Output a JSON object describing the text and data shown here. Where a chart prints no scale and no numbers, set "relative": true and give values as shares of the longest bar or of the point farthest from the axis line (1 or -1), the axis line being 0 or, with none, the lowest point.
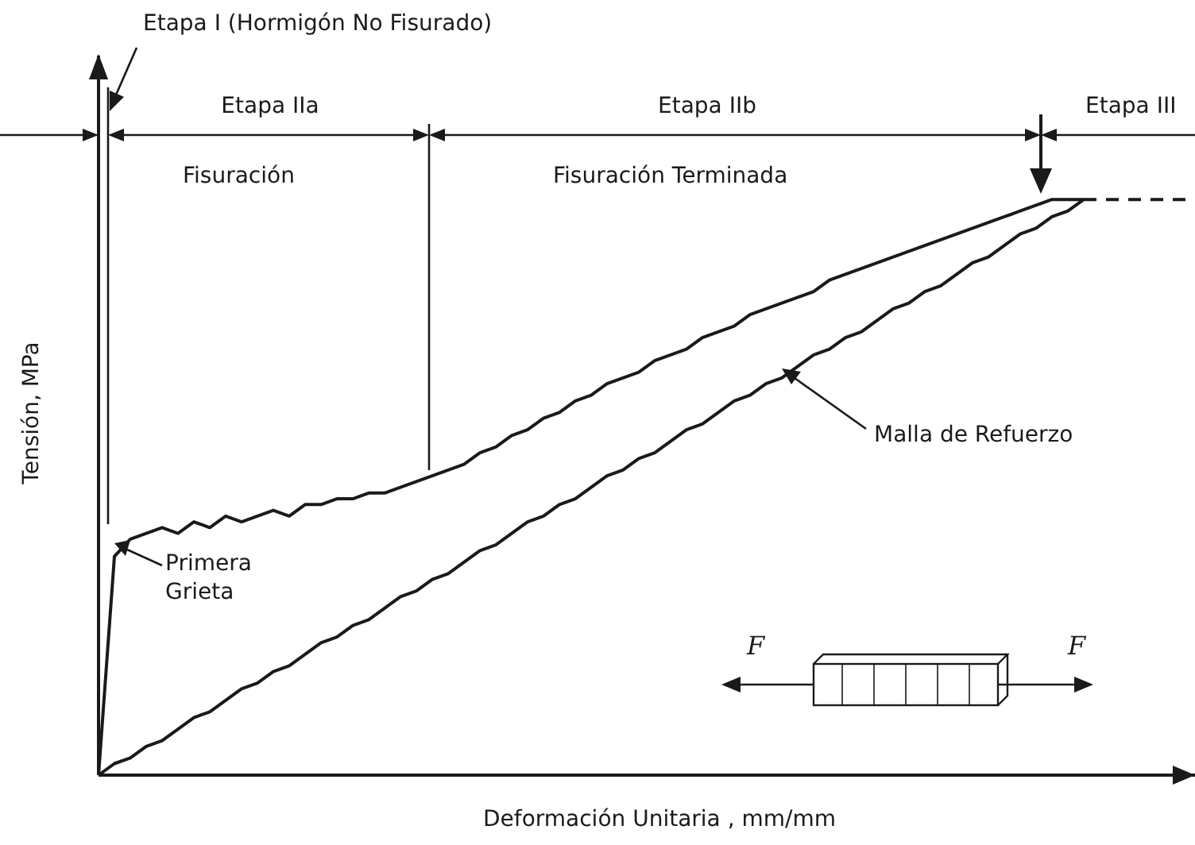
{
  "chart_data": {
    "type": "line",
    "relative": true,
    "xlabel": "Deformación Unitaria , mm/mm",
    "ylabel": "Tensión, MPa",
    "categories": [
      null,
      null,
      null,
      null,
      null,
      null,
      null,
      null,
      null,
      null,
      null,
      null,
      null,
      null,
      null,
      null,
      null,
      null,
      null,
      null,
      null,
      null,
      null,
      null,
      null,
      null,
      null,
      null,
      null,
      null,
      null,
      null,
      null,
      null,
      null,
      null,
      null,
      null,
      null,
      null,
      null,
      null,
      null,
      null,
      null,
      null,
      null,
      null,
      null,
      null,
      null,
      null,
      null,
      null,
      null,
      null,
      null,
      null,
      null,
      null,
      null,
      null,
      null,
      null,
      null,
      null,
      null,
      null,
      null,
      null
    ],
    "series": [
      {
        "color": "#1a1a1a",
        "line_style": "solid",
        "values": [
          0,
          0.38,
          0.41,
          0.42,
          0.43,
          0.42,
          0.44,
          0.43,
          0.45,
          0.44,
          0.45,
          0.46,
          0.45,
          0.47,
          0.47,
          0.48,
          0.48,
          0.49,
          0.49,
          0.5,
          0.51,
          0.52,
          0.53,
          0.54,
          0.56,
          0.57,
          0.59,
          0.6,
          0.62,
          0.63,
          0.65,
          0.66,
          0.68,
          0.69,
          0.7,
          0.72,
          0.73,
          0.74,
          0.76,
          0.77,
          0.78,
          0.8,
          0.81,
          0.82,
          0.83,
          0.84,
          0.86,
          0.87,
          0.88,
          0.89,
          0.9,
          0.91,
          0.92,
          0.93,
          0.94,
          0.95,
          0.96,
          0.97,
          0.98,
          0.99,
          1,
          1,
          1,
          null,
          null,
          null,
          null,
          null,
          null,
          null
        ]
      },
      {
        "name": "Malla de Refuerzo",
        "color": "#1a1a1a",
        "line_style": "solid",
        "values": [
          0,
          0.02,
          0.03,
          0.05,
          0.06,
          0.08,
          0.1,
          0.11,
          0.13,
          0.15,
          0.16,
          0.18,
          0.19,
          0.21,
          0.23,
          0.24,
          0.26,
          0.27,
          0.29,
          0.31,
          0.32,
          0.34,
          0.35,
          0.37,
          0.39,
          0.4,
          0.42,
          0.44,
          0.45,
          0.47,
          0.48,
          0.5,
          0.52,
          0.53,
          0.55,
          0.56,
          0.58,
          0.6,
          0.61,
          0.63,
          0.65,
          0.66,
          0.68,
          0.69,
          0.71,
          0.73,
          0.74,
          0.76,
          0.77,
          0.79,
          0.81,
          0.82,
          0.84,
          0.85,
          0.87,
          0.89,
          0.9,
          0.92,
          0.94,
          0.95,
          0.97,
          0.98,
          1,
          null,
          null,
          null,
          null,
          null,
          null,
          null
        ]
      },
      {
        "color": "#1a1a1a",
        "line_style": "dashed",
        "values": [
          null,
          null,
          null,
          null,
          null,
          null,
          null,
          null,
          null,
          null,
          null,
          null,
          null,
          null,
          null,
          null,
          null,
          null,
          null,
          null,
          null,
          null,
          null,
          null,
          null,
          null,
          null,
          null,
          null,
          null,
          null,
          null,
          null,
          null,
          null,
          null,
          null,
          null,
          null,
          null,
          null,
          null,
          null,
          null,
          null,
          null,
          null,
          null,
          null,
          null,
          null,
          null,
          null,
          null,
          null,
          null,
          null,
          null,
          null,
          null,
          null,
          null,
          1,
          1,
          1,
          1,
          1,
          1,
          1,
          1
        ]
      }
    ],
    "annotations": [
      "Etapa I (Hormigón No Fisurado)",
      "Etapa IIa",
      "Etapa IIb",
      "Etapa III",
      "Fisuración",
      "Fisuración Terminada",
      "Primera Grieta",
      "F",
      "F"
    ]
  }
}
